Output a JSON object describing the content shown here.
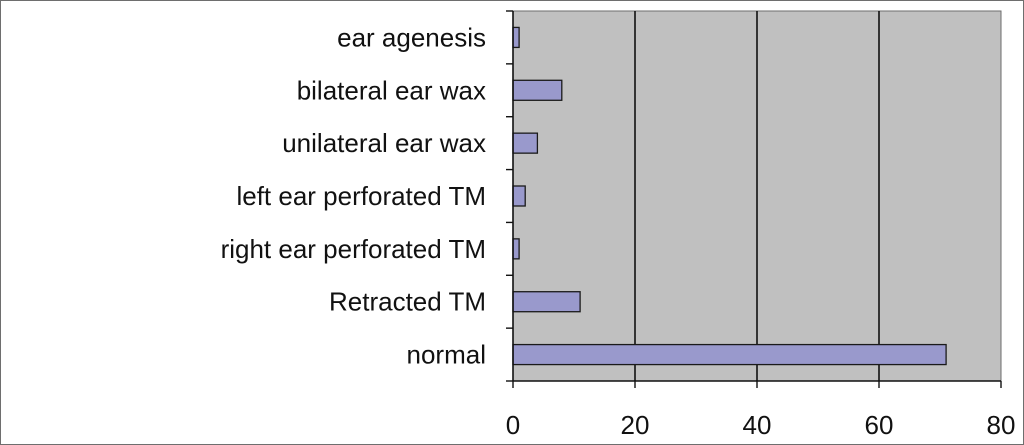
{
  "chart_data": {
    "type": "bar",
    "orientation": "horizontal",
    "categories": [
      "ear agenesis",
      "bilateral ear wax",
      "unilateral ear wax",
      "left ear perforated TM",
      "right ear perforated TM",
      "Retracted TM",
      "normal"
    ],
    "values": [
      1,
      8,
      4,
      2,
      1,
      11,
      71
    ],
    "xlim": [
      0,
      80
    ],
    "xticks": [
      0,
      20,
      40,
      60,
      80
    ],
    "grid": "vertical",
    "legend": "none",
    "colors": {
      "bar_fill": "#9999cc",
      "bar_stroke": "#1a1a1a",
      "plot_bg": "#c0c0c0",
      "gridline": "#111111"
    }
  }
}
